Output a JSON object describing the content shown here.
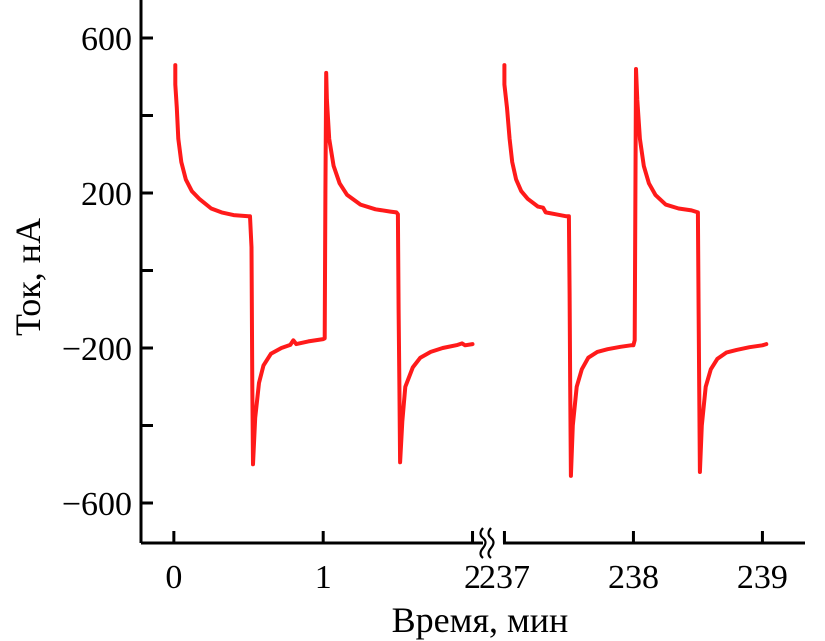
{
  "chart_data": {
    "type": "line",
    "xlabel": "Время, мин",
    "ylabel": "Ток, нА",
    "ylim": [
      -720,
      720
    ],
    "yticks": [
      600,
      200,
      -200,
      -600
    ],
    "ytick_labels": [
      "600",
      "200",
      "−200",
      "−600"
    ],
    "y_minor_ticks": [
      400,
      0,
      -400
    ],
    "grid": false,
    "x_axis_broken": true,
    "x_break_between": [
      2,
      237
    ],
    "segments": [
      {
        "xlim": [
          -0.22,
          2.05
        ],
        "xticks": [
          0,
          1,
          2
        ],
        "xtick_labels": [
          "0",
          "1",
          "2"
        ]
      },
      {
        "xlim": [
          236.95,
          239.33
        ],
        "xticks": [
          237,
          238,
          239
        ],
        "xtick_labels": [
          "237",
          "238",
          "239"
        ]
      }
    ],
    "series": [
      {
        "color": "#ff1a1a",
        "points": [
          [
            0.01,
            530
          ],
          [
            0.01,
            480
          ],
          [
            0.02,
            420
          ],
          [
            0.03,
            340
          ],
          [
            0.05,
            280
          ],
          [
            0.08,
            235
          ],
          [
            0.12,
            205
          ],
          [
            0.17,
            185
          ],
          [
            0.25,
            160
          ],
          [
            0.32,
            150
          ],
          [
            0.4,
            143
          ],
          [
            0.5,
            140
          ],
          [
            0.51,
            140
          ],
          [
            0.52,
            60
          ],
          [
            0.525,
            -300
          ],
          [
            0.53,
            -500
          ],
          [
            0.545,
            -380
          ],
          [
            0.57,
            -290
          ],
          [
            0.6,
            -245
          ],
          [
            0.65,
            -215
          ],
          [
            0.72,
            -200
          ],
          [
            0.78,
            -192
          ],
          [
            0.8,
            -180
          ],
          [
            0.82,
            -190
          ],
          [
            0.9,
            -183
          ],
          [
            1.0,
            -177
          ],
          [
            1.01,
            -175
          ],
          [
            1.015,
            200
          ],
          [
            1.02,
            510
          ],
          [
            1.025,
            440
          ],
          [
            1.04,
            340
          ],
          [
            1.07,
            270
          ],
          [
            1.11,
            225
          ],
          [
            1.16,
            195
          ],
          [
            1.25,
            170
          ],
          [
            1.35,
            158
          ],
          [
            1.45,
            152
          ],
          [
            1.49,
            150
          ],
          [
            1.5,
            145
          ],
          [
            1.505,
            -100
          ],
          [
            1.51,
            -300
          ],
          [
            1.515,
            -495
          ],
          [
            1.53,
            -390
          ],
          [
            1.55,
            -300
          ],
          [
            1.6,
            -250
          ],
          [
            1.65,
            -225
          ],
          [
            1.72,
            -210
          ],
          [
            1.8,
            -200
          ],
          [
            1.9,
            -192
          ],
          [
            1.93,
            -188
          ],
          [
            1.95,
            -193
          ],
          [
            2.0,
            -190
          ]
        ]
      },
      {
        "color": "#ff1a1a",
        "points": [
          [
            237.0,
            530
          ],
          [
            237.0,
            480
          ],
          [
            237.02,
            420
          ],
          [
            237.04,
            340
          ],
          [
            237.06,
            280
          ],
          [
            237.09,
            235
          ],
          [
            237.13,
            205
          ],
          [
            237.18,
            185
          ],
          [
            237.26,
            165
          ],
          [
            237.3,
            162
          ],
          [
            237.32,
            150
          ],
          [
            237.4,
            145
          ],
          [
            237.48,
            140
          ],
          [
            237.5,
            140
          ],
          [
            237.505,
            -60
          ],
          [
            237.51,
            -300
          ],
          [
            237.515,
            -530
          ],
          [
            237.53,
            -400
          ],
          [
            237.56,
            -300
          ],
          [
            237.6,
            -255
          ],
          [
            237.65,
            -225
          ],
          [
            237.72,
            -210
          ],
          [
            237.8,
            -203
          ],
          [
            237.9,
            -197
          ],
          [
            237.98,
            -193
          ],
          [
            238.0,
            -193
          ],
          [
            238.01,
            -180
          ],
          [
            238.015,
            200
          ],
          [
            238.02,
            520
          ],
          [
            238.03,
            440
          ],
          [
            238.05,
            340
          ],
          [
            238.08,
            270
          ],
          [
            238.12,
            225
          ],
          [
            238.17,
            195
          ],
          [
            238.25,
            170
          ],
          [
            238.35,
            160
          ],
          [
            238.45,
            155
          ],
          [
            238.5,
            150
          ],
          [
            238.505,
            -100
          ],
          [
            238.51,
            -300
          ],
          [
            238.515,
            -520
          ],
          [
            238.53,
            -400
          ],
          [
            238.56,
            -300
          ],
          [
            238.6,
            -255
          ],
          [
            238.65,
            -228
          ],
          [
            238.72,
            -212
          ],
          [
            238.8,
            -205
          ],
          [
            238.9,
            -198
          ],
          [
            239.0,
            -193
          ],
          [
            239.03,
            -190
          ]
        ]
      }
    ]
  }
}
